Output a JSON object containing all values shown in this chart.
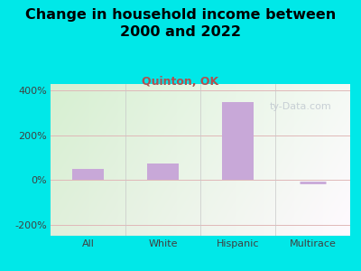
{
  "title": "Change in household income between\n2000 and 2022",
  "subtitle": "Quinton, OK",
  "categories": [
    "All",
    "White",
    "Hispanic",
    "Multirace"
  ],
  "values": [
    50,
    75,
    350,
    -10
  ],
  "bar_color": "#c8a8d8",
  "title_fontsize": 11.5,
  "subtitle_fontsize": 9,
  "subtitle_color": "#b05050",
  "title_color": "#000000",
  "background_color": "#00e8e8",
  "ylim": [
    -250,
    430
  ],
  "yticks": [
    -200,
    0,
    200,
    400
  ],
  "ytick_labels": [
    "-200%",
    "0%",
    "200%",
    "400%"
  ],
  "watermark": "ty-Data.com",
  "watermark_color": "#c0c8d0",
  "grid_color": "#e0b8b8",
  "axis_label_color": "#404040",
  "tick_fontsize": 8
}
